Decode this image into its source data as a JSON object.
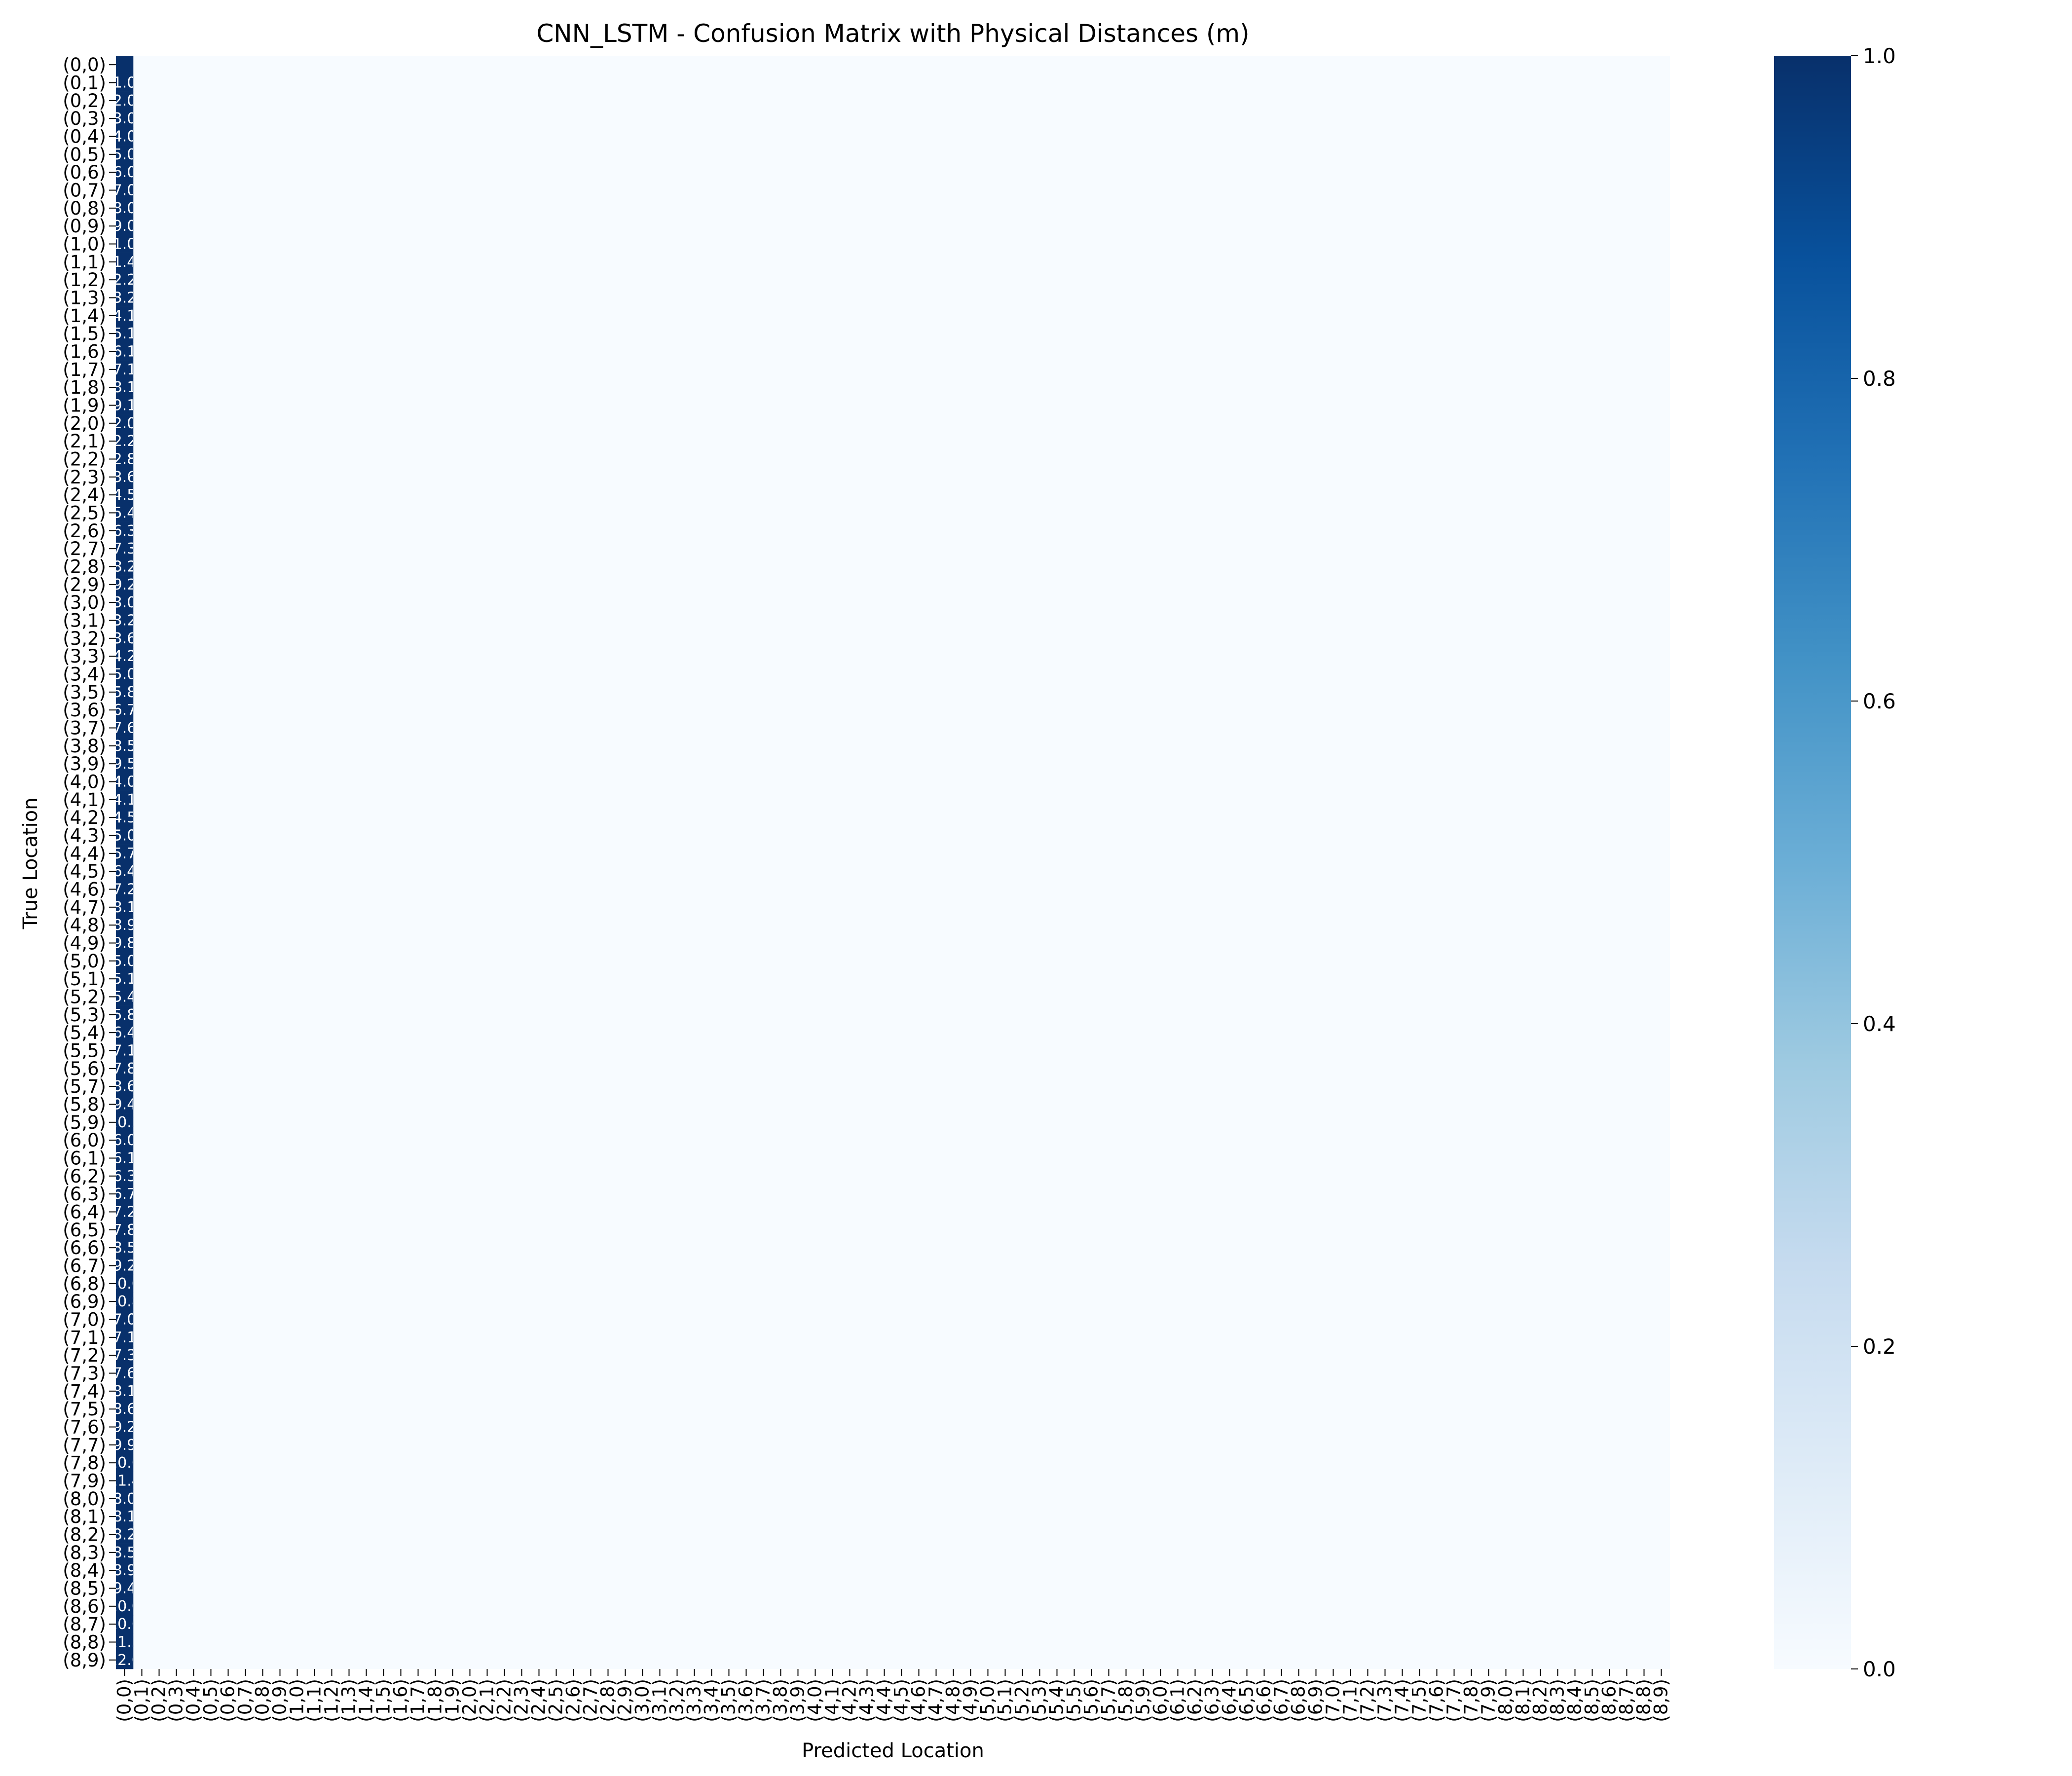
{
  "chart_data": {
    "type": "heatmap",
    "title": "CNN_LSTM - Confusion Matrix with Physical Distances (m)",
    "xlabel": "Predicted Location",
    "ylabel": "True Location",
    "labels": [
      "(0,0)",
      "(0,1)",
      "(0,2)",
      "(0,3)",
      "(0,4)",
      "(0,5)",
      "(0,6)",
      "(0,7)",
      "(0,8)",
      "(0,9)",
      "(1,0)",
      "(1,1)",
      "(1,2)",
      "(1,3)",
      "(1,4)",
      "(1,5)",
      "(1,6)",
      "(1,7)",
      "(1,8)",
      "(1,9)",
      "(2,0)",
      "(2,1)",
      "(2,2)",
      "(2,3)",
      "(2,4)",
      "(2,5)",
      "(2,6)",
      "(2,7)",
      "(2,8)",
      "(2,9)",
      "(3,0)",
      "(3,1)",
      "(3,2)",
      "(3,3)",
      "(3,4)",
      "(3,5)",
      "(3,6)",
      "(3,7)",
      "(3,8)",
      "(3,9)",
      "(4,0)",
      "(4,1)",
      "(4,2)",
      "(4,3)",
      "(4,4)",
      "(4,5)",
      "(4,6)",
      "(4,7)",
      "(4,8)",
      "(4,9)",
      "(5,0)",
      "(5,1)",
      "(5,2)",
      "(5,3)",
      "(5,4)",
      "(5,5)",
      "(5,6)",
      "(5,7)",
      "(5,8)",
      "(5,9)",
      "(6,0)",
      "(6,1)",
      "(6,2)",
      "(6,3)",
      "(6,4)",
      "(6,5)",
      "(6,6)",
      "(6,7)",
      "(6,8)",
      "(6,9)",
      "(7,0)",
      "(7,1)",
      "(7,2)",
      "(7,3)",
      "(7,4)",
      "(7,5)",
      "(7,6)",
      "(7,7)",
      "(7,8)",
      "(7,9)",
      "(8,0)",
      "(8,1)",
      "(8,2)",
      "(8,3)",
      "(8,4)",
      "(8,5)",
      "(8,6)",
      "(8,7)",
      "(8,8)",
      "(8,9)"
    ],
    "predicted_column_with_mass": "(0,0)",
    "row_values_in_predicted_column": 1.0,
    "all_other_cells_value": 0.0,
    "cell_annotations_column_00": [
      "",
      "1.0",
      "2.0",
      "3.0",
      "4.0",
      "5.0",
      "6.0",
      "7.0",
      "8.0",
      "9.0",
      "1.0",
      "1.4",
      "2.2",
      "3.2",
      "4.1",
      "5.1",
      "6.1",
      "7.1",
      "8.1",
      "9.1",
      "2.0",
      "2.2",
      "2.8",
      "3.6",
      "4.5",
      "5.4",
      "6.3",
      "7.3",
      "8.2",
      "9.2",
      "3.0",
      "3.2",
      "3.6",
      "4.2",
      "5.0",
      "5.8",
      "6.7",
      "7.6",
      "8.5",
      "9.5",
      "4.0",
      "4.1",
      "4.5",
      "5.0",
      "5.7",
      "6.4",
      "7.2",
      "8.1",
      "8.9",
      "9.8",
      "5.0",
      "5.1",
      "5.4",
      "5.8",
      "6.4",
      "7.1",
      "7.8",
      "8.6",
      "9.4",
      "10.3",
      "6.0",
      "6.1",
      "6.3",
      "6.7",
      "7.2",
      "7.8",
      "8.5",
      "9.2",
      "10.0",
      "10.8",
      "7.0",
      "7.1",
      "7.3",
      "7.6",
      "8.1",
      "8.6",
      "9.2",
      "9.9",
      "10.6",
      "11.4",
      "8.0",
      "8.1",
      "8.2",
      "8.5",
      "8.9",
      "9.4",
      "10.0",
      "10.6",
      "11.3",
      "12.0"
    ],
    "colormap": "Blues",
    "colormap_low": "#f7fbff",
    "colormap_high": "#08306b",
    "colorbar_range": [
      0.0,
      1.0
    ],
    "colorbar_ticks": [
      "0.0",
      "0.2",
      "0.4",
      "0.6",
      "0.8",
      "1.0"
    ]
  }
}
